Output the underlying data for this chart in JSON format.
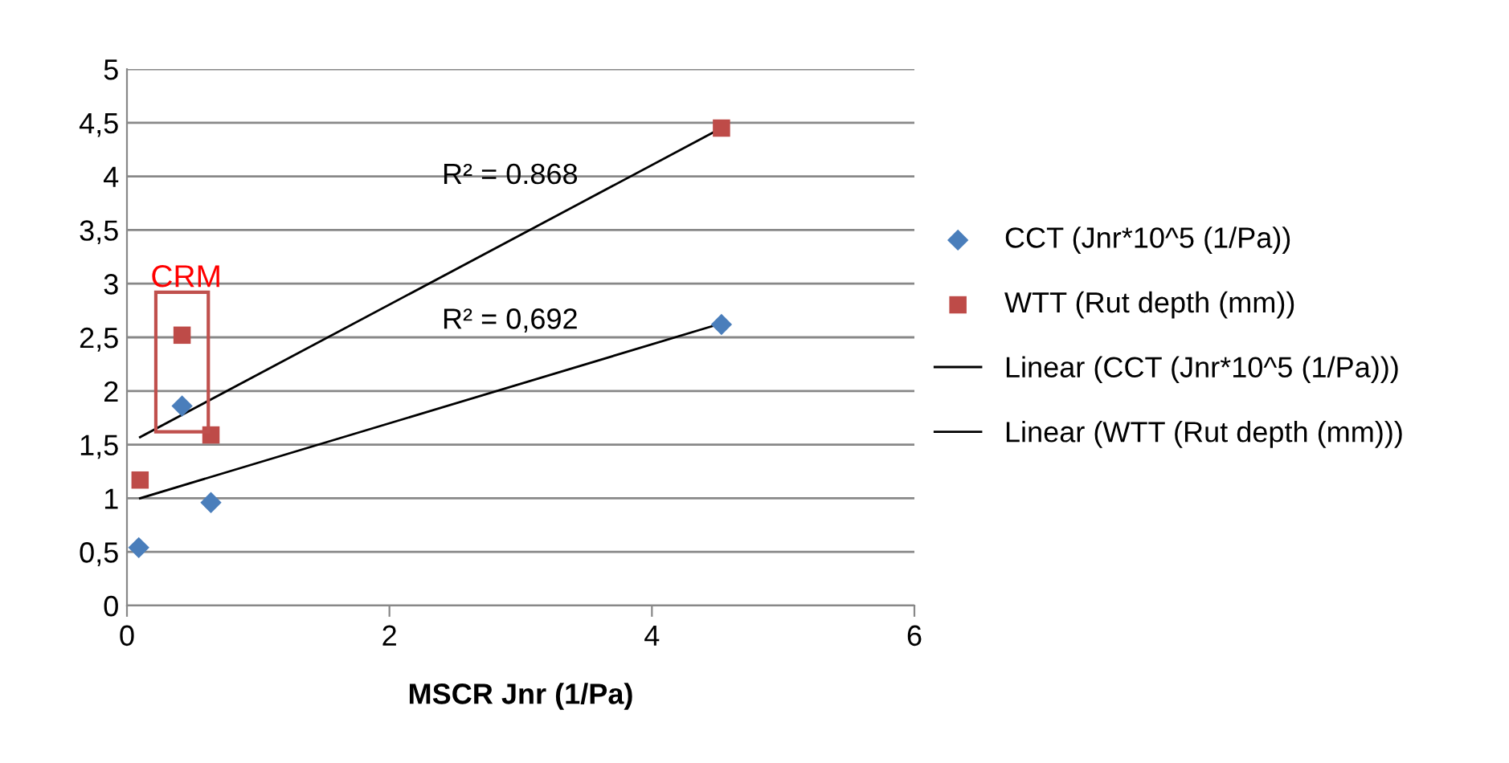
{
  "chart_data": {
    "type": "scatter",
    "xlabel": "MSCR Jnr (1/Pa)",
    "xlim": [
      0,
      6
    ],
    "xticks": [
      0,
      2,
      4,
      6
    ],
    "ylim": [
      0,
      5
    ],
    "yticks": [
      0,
      {
        "value": 0.5,
        "label": "0,5"
      },
      1,
      {
        "value": 1.5,
        "label": "1,5"
      },
      2,
      {
        "value": 2.5,
        "label": "2,5"
      },
      3,
      {
        "value": 3.5,
        "label": "3,5"
      },
      4,
      {
        "value": 4.5,
        "label": "4,5"
      },
      5
    ],
    "grid": "y",
    "legend": "right",
    "series": [
      {
        "name": "CCT (Jnr*10^5 (1/Pa))",
        "marker": "diamond",
        "color": "#4a7ebb",
        "x": [
          0.09,
          0.42,
          0.64,
          4.53
        ],
        "values": [
          0.54,
          1.86,
          0.96,
          2.62
        ]
      },
      {
        "name": "WTT (Rut depth (mm))",
        "marker": "square",
        "color": "#be4b48",
        "x": [
          0.1,
          0.42,
          0.64,
          4.53
        ],
        "values": [
          1.17,
          2.52,
          1.59,
          4.45
        ]
      },
      {
        "name": "Linear (CCT (Jnr*10^5 (1/Pa)))",
        "type": "line",
        "marker": "none",
        "color": "#000000",
        "x": [
          0.1,
          4.53
        ],
        "values": [
          1.0,
          2.63
        ]
      },
      {
        "name": "Linear (WTT (Rut depth (mm)))",
        "type": "line",
        "marker": "none",
        "color": "#000000",
        "x": [
          0.1,
          4.53
        ],
        "values": [
          1.57,
          4.45
        ]
      }
    ],
    "annotations": [
      "R² = 0.868",
      "R² = 0,692",
      {
        "text": "CRM",
        "x": 0.42,
        "y": 2.52
      }
    ]
  }
}
